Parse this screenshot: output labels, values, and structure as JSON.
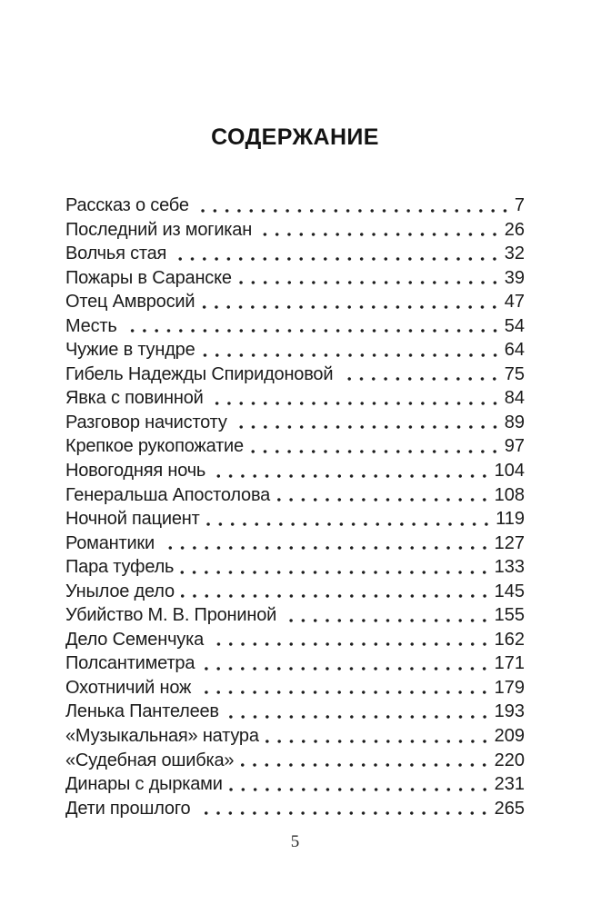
{
  "page": {
    "title": "СОДЕРЖАНИЕ",
    "footer_page_number": "5"
  },
  "toc": {
    "entries": [
      {
        "title": "Рассказ о себе",
        "page": "7"
      },
      {
        "title": "Последний из могикан",
        "page": "26"
      },
      {
        "title": "Волчья стая",
        "page": "32"
      },
      {
        "title": "Пожары в Саранске",
        "page": "39"
      },
      {
        "title": "Отец Амвросий",
        "page": "47"
      },
      {
        "title": "Месть",
        "page": "54"
      },
      {
        "title": "Чужие в тундре",
        "page": "64"
      },
      {
        "title": "Гибель Надежды Спиридоновой",
        "page": "75"
      },
      {
        "title": "Явка с повинной",
        "page": "84"
      },
      {
        "title": "Разговор начистоту",
        "page": "89"
      },
      {
        "title": "Крепкое рукопожатие",
        "page": "97"
      },
      {
        "title": "Новогодняя ночь",
        "page": "104"
      },
      {
        "title": "Генеральша Апостолова",
        "page": "108"
      },
      {
        "title": "Ночной пациент",
        "page": "119"
      },
      {
        "title": "Романтики",
        "page": "127"
      },
      {
        "title": "Пара туфель",
        "page": "133"
      },
      {
        "title": "Унылое дело",
        "page": "145"
      },
      {
        "title": "Убийство М. В. Прониной",
        "page": "155"
      },
      {
        "title": "Дело Семенчука",
        "page": "162"
      },
      {
        "title": "Полсантиметра",
        "page": "171"
      },
      {
        "title": "Охотничий нож",
        "page": "179"
      },
      {
        "title": "Ленька Пантелеев",
        "page": "193"
      },
      {
        "title": "«Музыкальная» натура",
        "page": "209"
      },
      {
        "title": "«Судебная ошибка»",
        "page": "220"
      },
      {
        "title": "Динары с дырками",
        "page": "231"
      },
      {
        "title": "Дети прошлого",
        "page": "265"
      }
    ]
  }
}
